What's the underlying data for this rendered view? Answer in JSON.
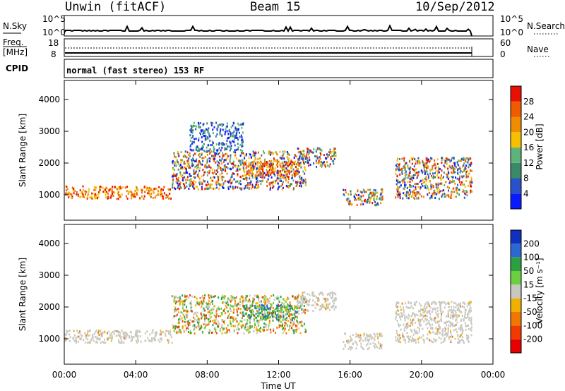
{
  "header": {
    "station": "Unwin (fitACF)",
    "beam": "Beam 15",
    "date": "10/Sep/2012"
  },
  "strips": {
    "nsky_label": "N.Sky",
    "nsky_ticks": [
      "10^5",
      "10^0"
    ],
    "nsearch_label": "N.Search",
    "nsearch_ticks": [
      "10^5",
      "10^0"
    ],
    "freq_label": [
      "Freq.",
      "[MHz]"
    ],
    "freq_ticks": [
      "18",
      "8"
    ],
    "nave_label": "Nave",
    "nave_ticks": [
      "60",
      "0"
    ],
    "cpid_label": "CPID",
    "cpid_text": "normal (fast stereo) 153 RF"
  },
  "chart_data": [
    {
      "type": "heatmap",
      "title": "",
      "xlabel": "",
      "ylabel": "Slant Range [km]",
      "x_ticks": [
        "00:00",
        "04:00",
        "08:00",
        "12:00",
        "16:00",
        "20:00",
        "00:00"
      ],
      "x_tick_hours": [
        0,
        4,
        8,
        12,
        16,
        20,
        24
      ],
      "xlim": [
        0,
        24
      ],
      "y_ticks": [
        1000,
        2000,
        3000,
        4000
      ],
      "ylim": [
        200,
        4600
      ],
      "colorbar": {
        "label": "Power [dB]",
        "levels": [
          4,
          8,
          12,
          16,
          20,
          24,
          28
        ],
        "colors": [
          "#0a1aff",
          "#2a52c8",
          "#3a8a6a",
          "#5fb37a",
          "#f5c000",
          "#f08c00",
          "#f05a00",
          "#e81000"
        ]
      },
      "regions": [
        {
          "t0": 0.0,
          "t1": 6.0,
          "r0": 900,
          "r1": 1300,
          "level": "high"
        },
        {
          "t0": 6.0,
          "t1": 13.5,
          "r0": 1200,
          "r1": 2400,
          "level": "mixed"
        },
        {
          "t0": 7.0,
          "t1": 10.0,
          "r0": 2400,
          "r1": 3300,
          "level": "low"
        },
        {
          "t0": 10.0,
          "t1": 13.0,
          "r0": 1600,
          "r1": 2100,
          "level": "high"
        },
        {
          "t0": 13.0,
          "t1": 15.2,
          "r0": 1900,
          "r1": 2500,
          "level": "mixed"
        },
        {
          "t0": 15.5,
          "t1": 17.8,
          "r0": 700,
          "r1": 1200,
          "level": "mixed"
        },
        {
          "t0": 18.5,
          "t1": 22.8,
          "r0": 900,
          "r1": 2200,
          "level": "mixed"
        }
      ]
    },
    {
      "type": "heatmap",
      "title": "",
      "xlabel": "Time UT",
      "ylabel": "Slant Range [km]",
      "x_ticks": [
        "00:00",
        "04:00",
        "08:00",
        "12:00",
        "16:00",
        "20:00",
        "00:00"
      ],
      "x_tick_hours": [
        0,
        4,
        8,
        12,
        16,
        20,
        24
      ],
      "xlim": [
        0,
        24
      ],
      "y_ticks": [
        1000,
        2000,
        3000,
        4000
      ],
      "ylim": [
        200,
        4600
      ],
      "colorbar": {
        "label": "Velocity [m s⁻¹]",
        "levels": [
          200,
          100,
          50,
          15,
          -15,
          -50,
          -100,
          -200
        ],
        "colors": [
          "#1030c0",
          "#2a6ad0",
          "#2aa040",
          "#6ad040",
          "#c8c8c0",
          "#f0b000",
          "#f07800",
          "#f03a00",
          "#e80000"
        ]
      },
      "regions": [
        {
          "t0": 0.0,
          "t1": 6.0,
          "r0": 900,
          "r1": 1300,
          "level": "ground"
        },
        {
          "t0": 6.0,
          "t1": 13.5,
          "r0": 1200,
          "r1": 2400,
          "level": "mixed"
        },
        {
          "t0": 10.0,
          "t1": 13.0,
          "r0": 1600,
          "r1": 2100,
          "level": "positive"
        },
        {
          "t0": 13.0,
          "t1": 15.2,
          "r0": 1900,
          "r1": 2500,
          "level": "ground"
        },
        {
          "t0": 15.5,
          "t1": 17.8,
          "r0": 700,
          "r1": 1200,
          "level": "ground"
        },
        {
          "t0": 18.5,
          "t1": 22.8,
          "r0": 900,
          "r1": 2200,
          "level": "ground"
        }
      ]
    }
  ]
}
